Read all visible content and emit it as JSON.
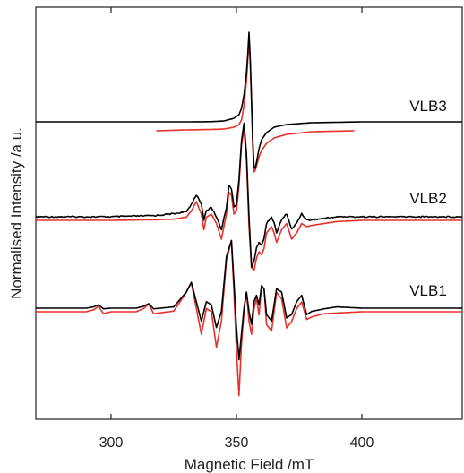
{
  "chart_data": {
    "type": "line",
    "xlabel": "Magnetic Field /mT",
    "ylabel": "Normalised Intensity /a.u.",
    "xlim": [
      270,
      440
    ],
    "x_ticks": [
      300,
      350,
      400
    ],
    "y_ticks_visible": false,
    "grid": false,
    "colors": {
      "experimental": "#000000",
      "simulation": "#e8302a"
    },
    "traces": [
      {
        "label": "VLB3",
        "experimental": {
          "x": [
            270,
            300,
            330,
            340,
            345,
            349,
            351,
            352,
            353,
            354,
            354.5,
            355,
            355.5,
            356,
            356.5,
            357,
            357.5,
            358,
            359,
            360,
            362,
            365,
            370,
            380,
            400,
            440
          ],
          "y": [
            0,
            0,
            0,
            0.002,
            0.01,
            0.04,
            0.08,
            0.15,
            0.3,
            0.55,
            0.75,
            1.0,
            0.7,
            0.25,
            -0.2,
            -0.5,
            -0.52,
            -0.45,
            -0.3,
            -0.2,
            -0.12,
            -0.06,
            -0.03,
            -0.01,
            0,
            0
          ]
        },
        "simulation": {
          "x": [
            318,
            330,
            340,
            345,
            349,
            351,
            352,
            353,
            354,
            354.5,
            355,
            355.5,
            356,
            356.5,
            357,
            357.5,
            358,
            359,
            360,
            362,
            365,
            370,
            380,
            397
          ],
          "y": [
            -0.06,
            -0.05,
            -0.045,
            -0.04,
            -0.02,
            0.01,
            0.06,
            0.22,
            0.5,
            0.72,
            0.95,
            0.7,
            0.25,
            -0.25,
            -0.52,
            -0.5,
            -0.45,
            -0.35,
            -0.28,
            -0.2,
            -0.14,
            -0.1,
            -0.07,
            -0.06
          ]
        }
      },
      {
        "label": "VLB2",
        "experimental": {
          "x": [
            270,
            300,
            318,
            325,
            330,
            332,
            334,
            336,
            337,
            338,
            340,
            342,
            344,
            346,
            347,
            348,
            349,
            350,
            351,
            352,
            353,
            354,
            355,
            356,
            357,
            358,
            359,
            360,
            361,
            362,
            364,
            365,
            366,
            368,
            370,
            372,
            374,
            376,
            378,
            380,
            390,
            400,
            440
          ],
          "y": [
            0,
            0,
            0.02,
            0.05,
            0.08,
            0.2,
            0.35,
            0.2,
            -0.05,
            0.1,
            0.15,
            0,
            -0.2,
            0.15,
            0.5,
            0.45,
            0.15,
            0.2,
            0.6,
            1.2,
            1.5,
            1.0,
            0.0,
            -0.8,
            -0.7,
            -0.5,
            -0.4,
            -0.45,
            -0.35,
            -0.1,
            0.0,
            -0.1,
            -0.25,
            -0.05,
            0.05,
            -0.2,
            -0.1,
            0.05,
            -0.05,
            -0.05,
            0,
            0,
            0
          ]
        },
        "simulation": {
          "x": [
            270,
            300,
            318,
            325,
            330,
            332,
            334,
            336,
            337,
            338,
            340,
            342,
            344,
            346,
            347,
            348,
            349,
            350,
            351,
            352,
            353,
            354,
            355,
            356,
            357,
            358,
            359,
            360,
            361,
            362,
            364,
            365,
            366,
            368,
            370,
            372,
            374,
            376,
            378,
            380,
            390,
            400,
            440
          ],
          "y": [
            0,
            0,
            0.01,
            0.02,
            0.05,
            0.15,
            0.3,
            0.1,
            -0.15,
            0.05,
            0.1,
            -0.05,
            -0.3,
            0.1,
            0.45,
            0.4,
            0.1,
            0.15,
            0.55,
            1.2,
            1.45,
            0.95,
            -0.1,
            -0.75,
            -0.8,
            -0.6,
            -0.5,
            -0.55,
            -0.45,
            -0.2,
            -0.1,
            -0.2,
            -0.35,
            -0.15,
            -0.05,
            -0.3,
            -0.2,
            -0.05,
            -0.1,
            -0.08,
            -0.02,
            0,
            0
          ]
        }
      },
      {
        "label": "VLB1",
        "experimental": {
          "x": [
            270,
            290,
            293,
            295,
            297,
            300,
            310,
            313,
            315,
            317,
            325,
            330,
            332,
            334,
            336,
            338,
            340,
            342,
            344,
            346,
            348,
            349,
            350,
            351,
            352,
            353,
            354,
            355,
            356,
            357,
            358,
            359,
            360,
            361,
            362,
            364,
            366,
            368,
            370,
            372,
            374,
            376,
            378,
            380,
            385,
            390,
            400,
            440
          ],
          "y": [
            0,
            0,
            0.02,
            0.05,
            -0.01,
            0,
            0,
            0.03,
            0.07,
            -0.01,
            0.02,
            0.25,
            0.4,
            0.1,
            -0.2,
            0.1,
            0.05,
            -0.3,
            -0.05,
            0.8,
            1.05,
            0.4,
            -0.3,
            -0.8,
            -0.4,
            0.0,
            0.25,
            -0.05,
            -0.25,
            0.1,
            0.2,
            0.05,
            0.35,
            0.3,
            -0.1,
            -0.2,
            0.3,
            0.25,
            -0.15,
            -0.1,
            0.1,
            0.2,
            -0.1,
            -0.05,
            -0.01,
            0.02,
            0,
            0
          ]
        },
        "simulation": {
          "x": [
            270,
            290,
            293,
            295,
            297,
            300,
            310,
            313,
            315,
            317,
            325,
            330,
            332,
            334,
            336,
            338,
            340,
            342,
            344,
            346,
            348,
            349,
            350,
            351,
            352,
            353,
            354,
            355,
            356,
            357,
            358,
            359,
            360,
            361,
            362,
            364,
            366,
            368,
            370,
            372,
            374,
            376,
            378,
            380,
            385,
            390,
            400,
            440
          ],
          "y": [
            0,
            0,
            0.03,
            0.08,
            -0.03,
            0,
            0,
            0.05,
            0.12,
            -0.03,
            0.01,
            0.3,
            0.45,
            0.05,
            -0.35,
            0.05,
            0.0,
            -0.55,
            -0.15,
            0.8,
            1.1,
            0.3,
            -0.6,
            -1.3,
            -0.5,
            0.0,
            0.3,
            -0.15,
            -0.35,
            0.05,
            0.2,
            -0.05,
            0.4,
            0.35,
            -0.2,
            -0.3,
            0.3,
            0.2,
            -0.25,
            -0.15,
            0.05,
            0.15,
            -0.12,
            -0.08,
            -0.03,
            -0.02,
            0,
            0
          ]
        }
      }
    ]
  }
}
